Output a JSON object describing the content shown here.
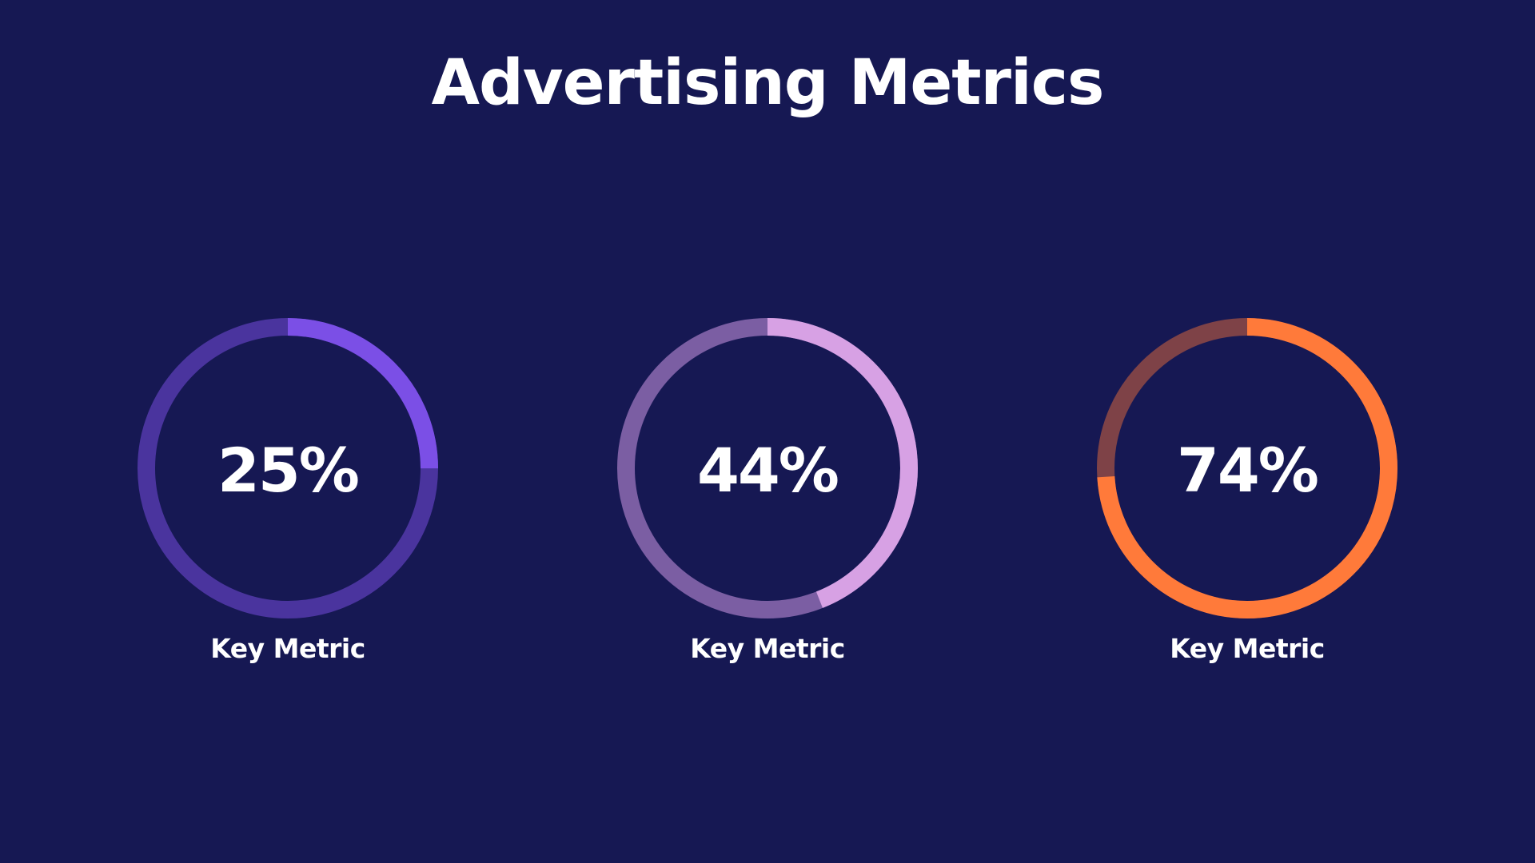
{
  "title": "Advertising Metrics",
  "chart_data": {
    "type": "donut-gauge",
    "title": "Advertising Metrics",
    "gauges": [
      {
        "value": 25,
        "value_label": "25%",
        "label": "Key Metric",
        "color": "#7B4FE6",
        "track_color": "#4A349E"
      },
      {
        "value": 44,
        "value_label": "44%",
        "label": "Key Metric",
        "color": "#D7A1E4",
        "track_color": "#7B5EA3"
      },
      {
        "value": 74,
        "value_label": "74%",
        "label": "Key Metric",
        "color": "#FF7A3A",
        "track_color": "#7E4247"
      }
    ]
  }
}
